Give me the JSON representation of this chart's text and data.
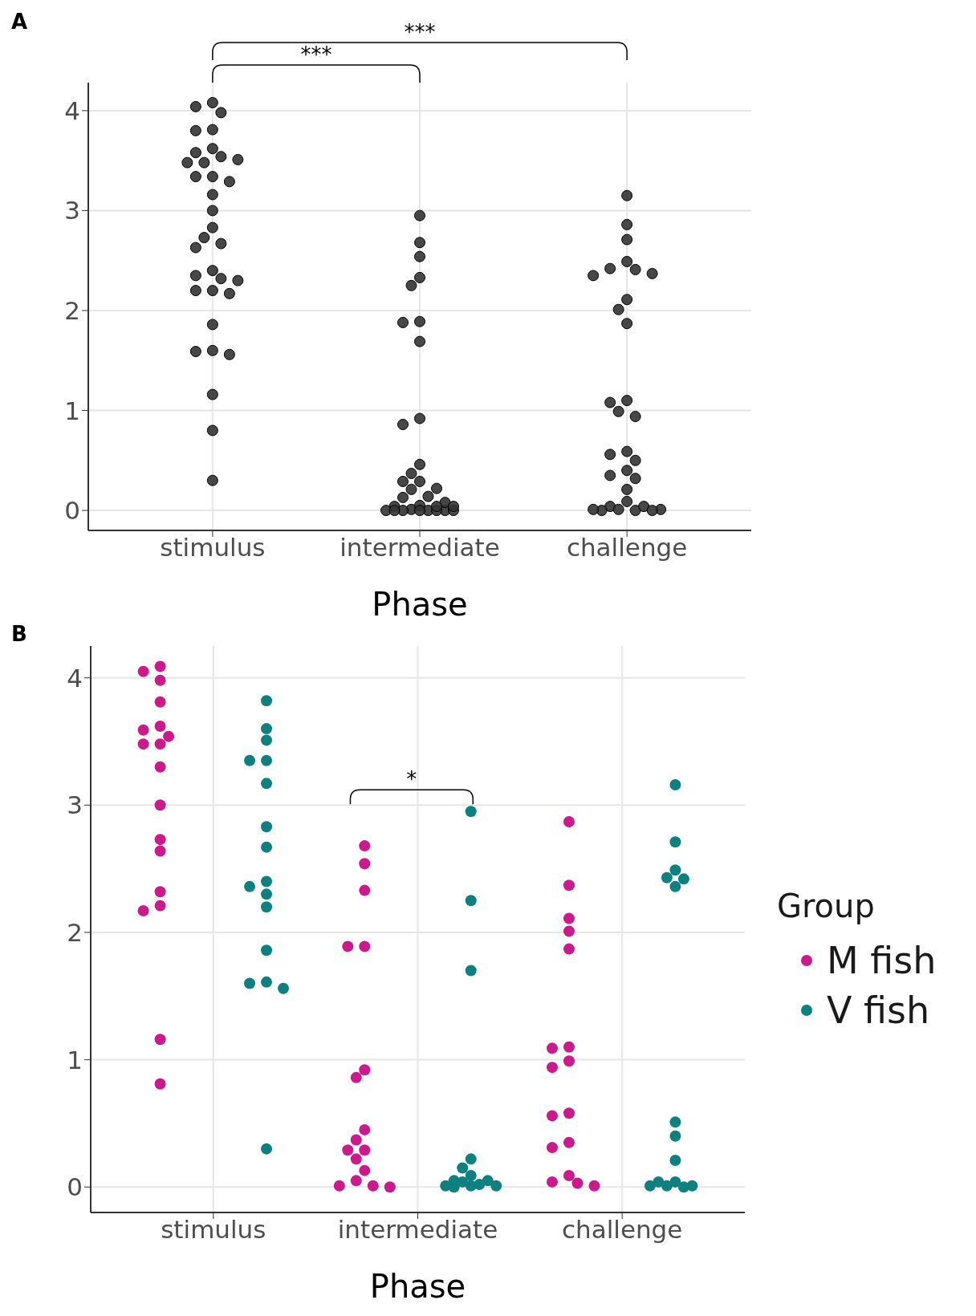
{
  "chart_data": [
    {
      "type": "scatter",
      "title": "A",
      "xlabel": "Phase",
      "categories": [
        "stimulus",
        "intermediate",
        "challenge"
      ],
      "ylim": [
        -0.2,
        4.28
      ],
      "yticks": [
        0,
        1,
        2,
        3,
        4
      ],
      "grid": true,
      "marker": "circle",
      "annotations": [
        "***",
        "***"
      ],
      "series": [
        {
          "color": "#333333",
          "x": [
            "stimulus",
            "stimulus",
            "stimulus",
            "stimulus",
            "stimulus",
            "stimulus",
            "stimulus",
            "stimulus",
            "stimulus",
            "stimulus",
            "stimulus",
            "stimulus",
            "stimulus",
            "stimulus",
            "stimulus",
            "stimulus",
            "stimulus",
            "stimulus",
            "stimulus",
            "stimulus",
            "stimulus",
            "stimulus",
            "stimulus",
            "stimulus",
            "stimulus",
            "stimulus",
            "stimulus",
            "stimulus",
            "stimulus",
            "stimulus",
            "stimulus",
            "stimulus",
            "stimulus",
            "stimulus",
            "intermediate",
            "intermediate",
            "intermediate",
            "intermediate",
            "intermediate",
            "intermediate",
            "intermediate",
            "intermediate",
            "intermediate",
            "intermediate",
            "intermediate",
            "intermediate",
            "intermediate",
            "intermediate",
            "intermediate",
            "intermediate",
            "intermediate",
            "intermediate",
            "intermediate",
            "intermediate",
            "intermediate",
            "intermediate",
            "intermediate",
            "intermediate",
            "intermediate",
            "intermediate",
            "intermediate",
            "intermediate",
            "intermediate",
            "intermediate",
            "intermediate",
            "intermediate",
            "challenge",
            "challenge",
            "challenge",
            "challenge",
            "challenge",
            "challenge",
            "challenge",
            "challenge",
            "challenge",
            "challenge",
            "challenge",
            "challenge",
            "challenge",
            "challenge",
            "challenge",
            "challenge",
            "challenge",
            "challenge",
            "challenge",
            "challenge",
            "challenge",
            "challenge",
            "challenge",
            "challenge",
            "challenge",
            "challenge",
            "challenge",
            "challenge",
            "challenge",
            "challenge",
            "challenge"
          ],
          "values": [
            3.98,
            4.08,
            4.04,
            3.8,
            3.81,
            3.62,
            3.58,
            3.54,
            3.51,
            3.48,
            3.48,
            3.34,
            3.34,
            3.29,
            3.16,
            3.0,
            2.83,
            2.73,
            2.67,
            2.63,
            2.4,
            2.35,
            2.32,
            2.3,
            2.2,
            2.2,
            2.17,
            1.86,
            1.59,
            1.6,
            1.56,
            1.16,
            0.8,
            0.3,
            2.95,
            2.68,
            2.54,
            2.25,
            2.33,
            1.89,
            1.88,
            1.69,
            0.86,
            0.46,
            0.37,
            0.21,
            0.14,
            0.13,
            0.01,
            0.0,
            0.04,
            0.0,
            0.05,
            0.0,
            0.0,
            0.92,
            0.29,
            0.29,
            0.22,
            0.08,
            0.0,
            0.0,
            0.04,
            0.0,
            0.0,
            0.04,
            3.15,
            2.86,
            2.71,
            2.49,
            2.41,
            2.35,
            2.37,
            2.42,
            2.11,
            2.01,
            1.87,
            1.1,
            1.08,
            0.99,
            0.94,
            0.59,
            0.56,
            0.5,
            0.4,
            0.35,
            0.32,
            0.21,
            0.09,
            0.04,
            0.0,
            0.0,
            0.01,
            0.01,
            0.04,
            0.0,
            0.01
          ]
        }
      ]
    },
    {
      "type": "scatter",
      "title": "B",
      "xlabel": "Phase",
      "legend_title": "Group",
      "legend": "right",
      "categories": [
        "stimulus",
        "intermediate",
        "challenge"
      ],
      "ylim": [
        -0.2,
        4.25
      ],
      "yticks": [
        0,
        1,
        2,
        3,
        4
      ],
      "grid": true,
      "marker": "circle",
      "annotations": [
        "*"
      ],
      "series": [
        {
          "name": "M fish",
          "color": "#cc1a8c",
          "x": [
            "stimulus",
            "stimulus",
            "stimulus",
            "stimulus",
            "stimulus",
            "stimulus",
            "stimulus",
            "stimulus",
            "stimulus",
            "stimulus",
            "stimulus",
            "stimulus",
            "stimulus",
            "stimulus",
            "stimulus",
            "stimulus",
            "stimulus",
            "stimulus",
            "intermediate",
            "intermediate",
            "intermediate",
            "intermediate",
            "intermediate",
            "intermediate",
            "intermediate",
            "intermediate",
            "intermediate",
            "intermediate",
            "intermediate",
            "intermediate",
            "intermediate",
            "intermediate",
            "intermediate",
            "intermediate",
            "intermediate",
            "challenge",
            "challenge",
            "challenge",
            "challenge",
            "challenge",
            "challenge",
            "challenge",
            "challenge",
            "challenge",
            "challenge",
            "challenge",
            "challenge",
            "challenge",
            "challenge",
            "challenge",
            "challenge",
            "challenge"
          ],
          "values": [
            4.05,
            4.09,
            3.98,
            3.81,
            3.59,
            3.62,
            3.54,
            3.48,
            3.48,
            3.3,
            3.0,
            2.73,
            2.64,
            2.32,
            2.21,
            2.17,
            1.16,
            0.81,
            2.68,
            2.54,
            2.33,
            1.89,
            1.89,
            0.92,
            0.86,
            0.45,
            0.37,
            0.29,
            0.29,
            0.22,
            0.13,
            0.05,
            0.01,
            0.01,
            0.0,
            2.87,
            2.37,
            2.11,
            2.01,
            1.87,
            1.09,
            1.1,
            0.99,
            0.94,
            0.58,
            0.56,
            0.35,
            0.31,
            0.09,
            0.04,
            0.01,
            0.03
          ]
        },
        {
          "name": "V fish",
          "color": "#0e8080",
          "x": [
            "stimulus",
            "stimulus",
            "stimulus",
            "stimulus",
            "stimulus",
            "stimulus",
            "stimulus",
            "stimulus",
            "stimulus",
            "stimulus",
            "stimulus",
            "stimulus",
            "stimulus",
            "stimulus",
            "stimulus",
            "stimulus",
            "stimulus",
            "intermediate",
            "intermediate",
            "intermediate",
            "intermediate",
            "intermediate",
            "intermediate",
            "intermediate",
            "intermediate",
            "intermediate",
            "intermediate",
            "intermediate",
            "intermediate",
            "intermediate",
            "intermediate",
            "challenge",
            "challenge",
            "challenge",
            "challenge",
            "challenge",
            "challenge",
            "challenge",
            "challenge",
            "challenge",
            "challenge",
            "challenge",
            "challenge",
            "challenge",
            "challenge",
            "challenge"
          ],
          "values": [
            3.82,
            3.6,
            3.51,
            3.35,
            3.35,
            3.17,
            2.83,
            2.67,
            2.4,
            2.36,
            2.3,
            2.2,
            1.86,
            1.6,
            1.61,
            1.56,
            0.3,
            2.95,
            2.25,
            1.7,
            0.22,
            0.15,
            0.09,
            0.05,
            0.04,
            0.01,
            0.01,
            0.0,
            0.05,
            0.02,
            0.01,
            3.16,
            2.71,
            2.49,
            2.43,
            2.36,
            2.42,
            0.51,
            0.4,
            0.21,
            0.01,
            0.0,
            0.01,
            0.04,
            0.04,
            0.01
          ]
        }
      ]
    }
  ]
}
